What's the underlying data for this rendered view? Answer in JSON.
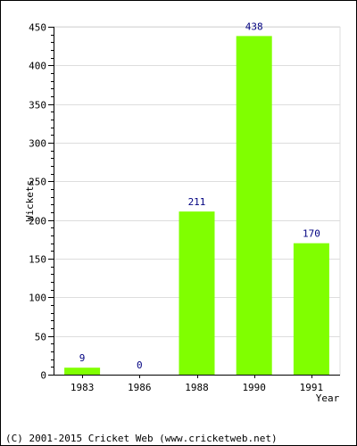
{
  "chart_data": {
    "type": "bar",
    "categories": [
      "1983",
      "1986",
      "1988",
      "1990",
      "1991"
    ],
    "values": [
      9,
      0,
      211,
      438,
      170
    ],
    "data_labels": [
      "9",
      "0",
      "211",
      "438",
      "170"
    ],
    "xlabel": "Year",
    "ylabel": "Wickets",
    "ylim": [
      0,
      450
    ],
    "yticks": [
      0,
      50,
      100,
      150,
      200,
      250,
      300,
      350,
      400,
      450
    ],
    "ytick_labels": [
      "0",
      "50",
      "100",
      "150",
      "200",
      "250",
      "300",
      "350",
      "400",
      "450"
    ],
    "grid": true,
    "legend": "none",
    "bar_color": "#80FF00",
    "data_label_color": "#000080"
  },
  "footer": {
    "copyright": "(C) 2001-2015 Cricket Web (www.cricketweb.net)"
  }
}
